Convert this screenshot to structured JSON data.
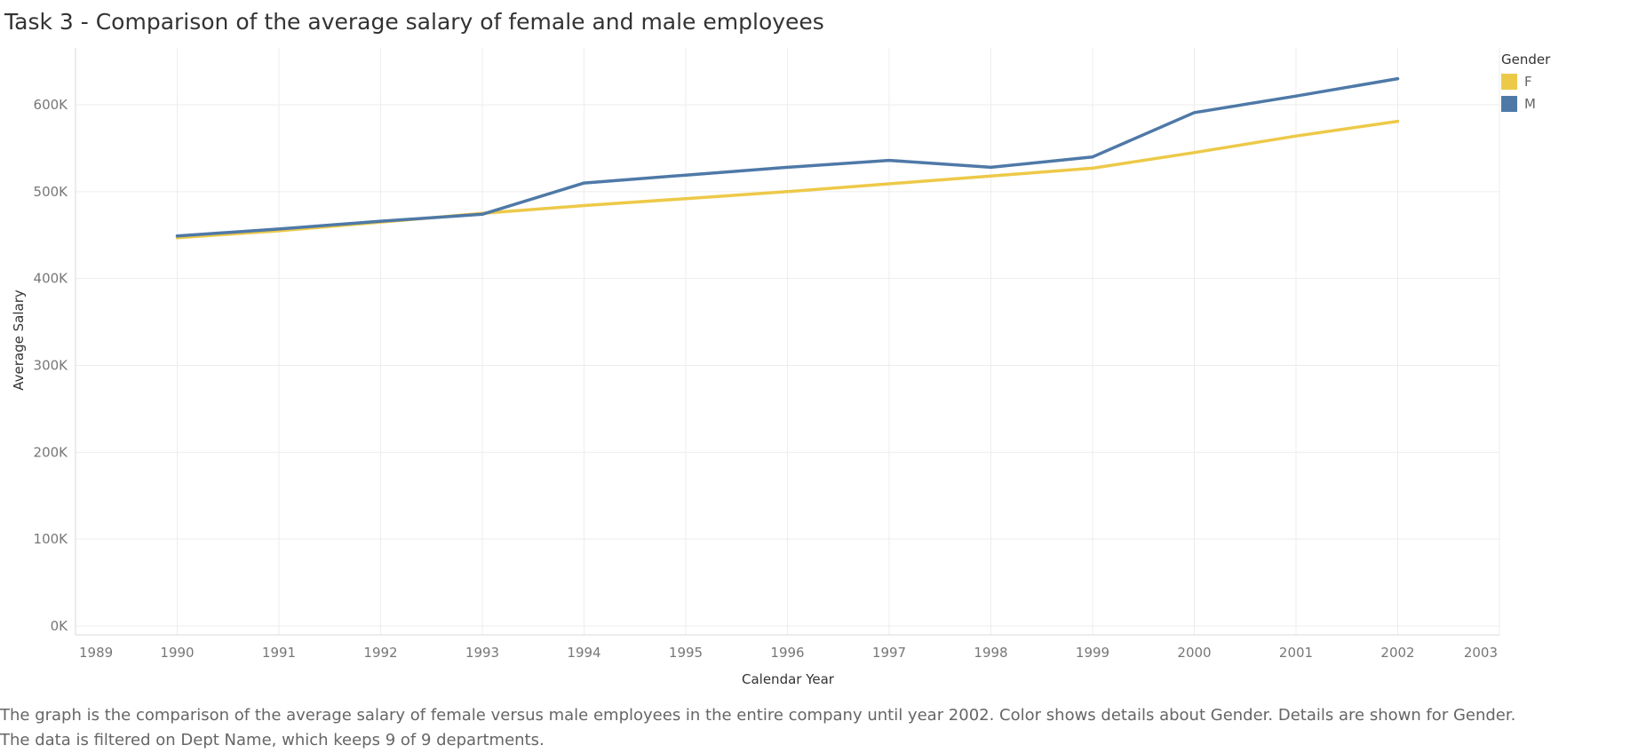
{
  "title": "Task 3 - Comparison of the average salary of female and male employees",
  "caption": {
    "line1": "The graph is the comparison of the average salary of female versus male employees in the entire company until year 2002.  Color shows details about Gender.  Details are shown for Gender.",
    "line2": "The data is filtered on Dept Name, which keeps 9 of 9 departments."
  },
  "colors": {
    "F": "#edc948",
    "M": "#4e79a7",
    "grid": "#ededed",
    "axis": "#d9d9d9"
  },
  "chart_data": {
    "type": "line",
    "xlabel": "Calendar Year",
    "ylabel": "Average Salary",
    "x": [
      1990,
      1991,
      1992,
      1993,
      1994,
      1995,
      1996,
      1997,
      1998,
      1999,
      2000,
      2001,
      2002
    ],
    "xlim": [
      1989,
      2003
    ],
    "xticks": [
      "1989",
      "1990",
      "1991",
      "1992",
      "1993",
      "1994",
      "1995",
      "1996",
      "1997",
      "1998",
      "1999",
      "2000",
      "2001",
      "2002",
      "2003"
    ],
    "ylim": [
      0,
      650000
    ],
    "yticks": [
      {
        "value": 0,
        "label": "0K"
      },
      {
        "value": 100000,
        "label": "100K"
      },
      {
        "value": 200000,
        "label": "200K"
      },
      {
        "value": 300000,
        "label": "300K"
      },
      {
        "value": 400000,
        "label": "400K"
      },
      {
        "value": 500000,
        "label": "500K"
      },
      {
        "value": 600000,
        "label": "600K"
      }
    ],
    "grid": true,
    "legend": {
      "title": "Gender",
      "position": "top-right"
    },
    "series": [
      {
        "name": "F",
        "values": [
          447000,
          455000,
          465000,
          475000,
          484000,
          492000,
          500000,
          509000,
          518000,
          527000,
          545000,
          564000,
          581000
        ]
      },
      {
        "name": "M",
        "values": [
          449000,
          457000,
          466000,
          474000,
          510000,
          519000,
          528000,
          536000,
          528000,
          540000,
          591000,
          610000,
          630000
        ]
      }
    ]
  }
}
